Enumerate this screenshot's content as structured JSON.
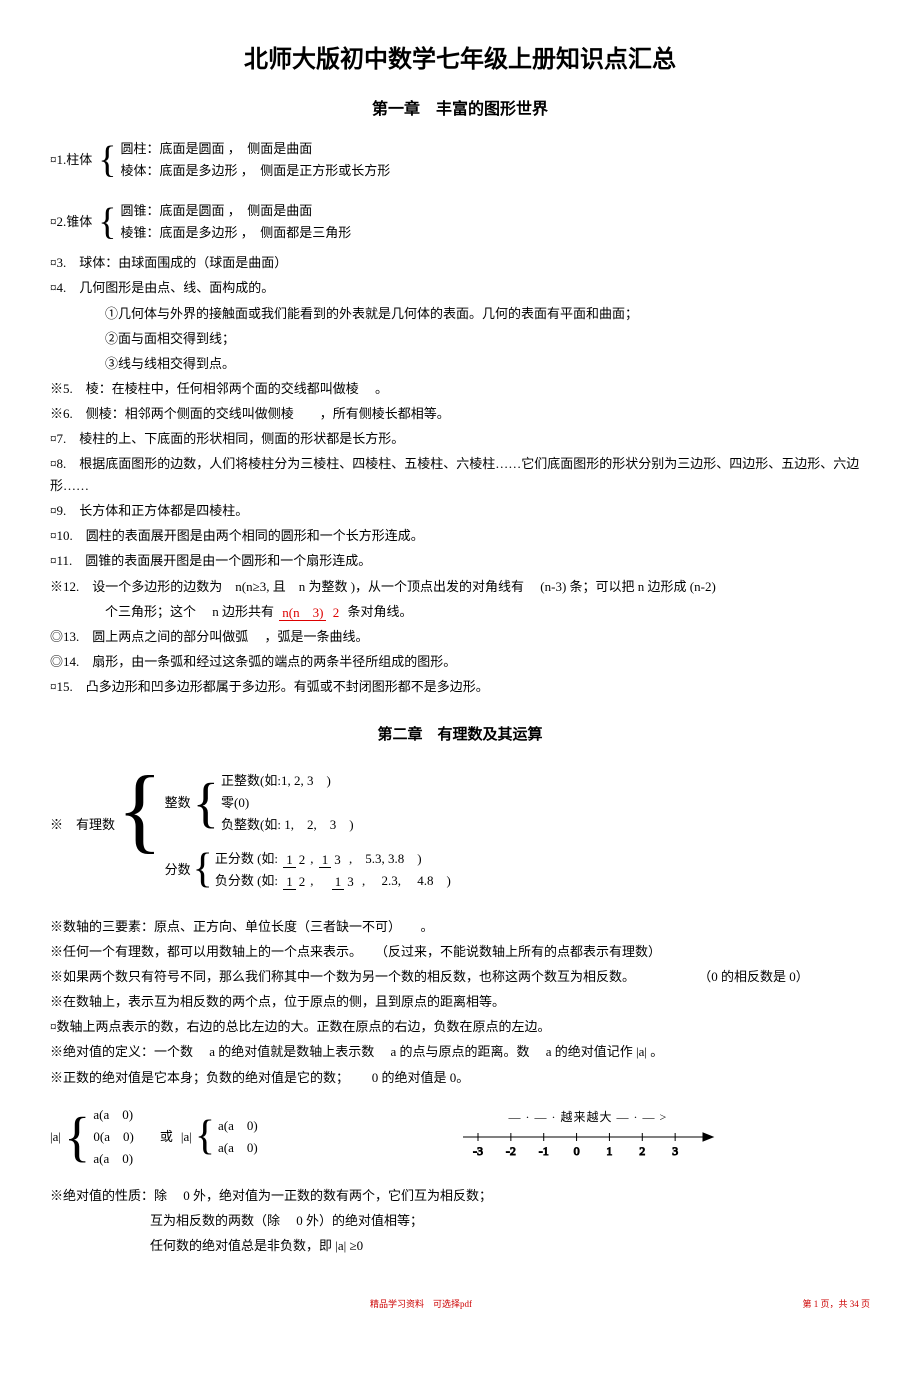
{
  "title": "北师大版初中数学七年级上册知识点汇总",
  "chapter1": {
    "heading": "第一章　丰富的图形世界",
    "item1_label": "¤1.柱体",
    "item1_a": "圆柱：底面是圆面 ，　侧面是曲面",
    "item1_b": "棱体：底面是多边形 ，　侧面是正方形或长方形",
    "item2_label": "¤2.锥体",
    "item2_a": "圆锥：底面是圆面 ，　侧面是曲面",
    "item2_b": "棱锥：底面是多边形 ，　侧面都是三角形",
    "item3": "¤3.　球体：由球面围成的（球面是曲面）",
    "item4": "¤4.　几何图形是由点、线、面构成的。",
    "item4a": "①几何体与外界的接触面或我们能看到的外表就是几何体的表面。几何的表面有平面和曲面；",
    "item4b": "②面与面相交得到线；",
    "item4c": "③线与线相交得到点。",
    "item5": "※5.　棱：在棱柱中，任何相邻两个面的交线都叫做棱　 。",
    "item6": "※6.　侧棱：相邻两个侧面的交线叫做侧棱　　，所有侧棱长都相等。",
    "item7": "¤7.　棱柱的上、下底面的形状相同，侧面的形状都是长方形。",
    "item8": "¤8.　根据底面图形的边数，人们将棱柱分为三棱柱、四棱柱、五棱柱、六棱柱……它们底面图形的形状分别为三边形、四边形、五边形、六边形……",
    "item9": "¤9.　长方体和正方体都是四棱柱。",
    "item10": "¤10.　圆柱的表面展开图是由两个相同的圆形和一个长方形连成。",
    "item11": "¤11.　圆锥的表面展开图是由一个圆形和一个扇形连成。",
    "item12_a": "※12.　设一个多边形的边数为　n(n≥3, 且　n 为整数 )，从一个顶点出发的对角线有　 (n-3)  条；可以把  n 边形成 (n-2)",
    "item12_b": "个三角形；这个　 n 边形共有 ",
    "item12_frac_num": "n(n　3)",
    "item12_frac_den": "2",
    "item12_c": " 条对角线。",
    "item13": "◎13.　圆上两点之间的部分叫做弧　 ，弧是一条曲线。",
    "item14": "◎14.　扇形，由一条弧和经过这条弧的端点的两条半径所组成的图形。",
    "item15": "¤15.　凸多边形和凹多边形都属于多边形。有弧或不封闭图形都不是多边形。"
  },
  "chapter2": {
    "heading": "第二章　有理数及其运算",
    "tree_root": "※　有理数",
    "int_label": "整数",
    "int_pos": "正整数(如:1, 2, 3　)",
    "int_zero": "零(0)",
    "int_neg": "负整数(如: 1,　2,　3　)",
    "frac_label": "分数",
    "frac_pos_a": "正分数 (如:",
    "frac_pos_b": ",　5.3,  3.8　)",
    "frac_neg_a": "负分数 (如: ",
    "frac_neg_b": ",　 2.3,　 4.8　)",
    "p1": "※数轴的三要素：原点、正方向、单位长度（三者缺一不可）　　。",
    "p2": "※任何一个有理数，都可以用数轴上的一个点来表示。　　（反过来，不能说数轴上所有的点都表示有理数）",
    "p3a": "※如果两个数只有符号不同，那么我们称其中一个数为另一个数的相反数，也称这两个数互为相反数。",
    "p3b": "（0 的相反数是 0）",
    "p4": "※在数轴上，表示互为相反数的两个点，位于原点的侧，且到原点的距离相等。",
    "p5": "¤数轴上两点表示的数，右边的总比左边的大。正数在原点的右边，负数在原点的左边。",
    "p6": "※绝对值的定义：一个数　 a 的绝对值就是数轴上表示数　 a 的点与原点的距离。数　 a 的绝对值记作 |a| 。",
    "p7": "※正数的绝对值是它本身；负数的绝对值是它的数；　　 0 的绝对值是  0。",
    "abs_lhs": "|a|",
    "abs_c1": "a(a　0)",
    "abs_c2": "0(a　0)",
    "abs_c3": "a(a　0)",
    "abs_or": "或",
    "abs2_c1": "a(a　0)",
    "abs2_c2": "a(a　0)",
    "numline_label": "越来越大",
    "ticks": [
      "-3",
      "-2",
      "-1",
      "0",
      "1",
      "2",
      "3"
    ],
    "p8": "※绝对值的性质：除　 0 外，绝对值为一正数的数有两个，它们互为相反数；",
    "p8b": "互为相反数的两数（除　 0 外）的绝对值相等；",
    "p8c": "任何数的绝对值总是非负数，即  |a|  ≥0"
  },
  "footer_left": "精品学习资料　可选择pdf",
  "footer_right": "第 1 页，共 34 页"
}
